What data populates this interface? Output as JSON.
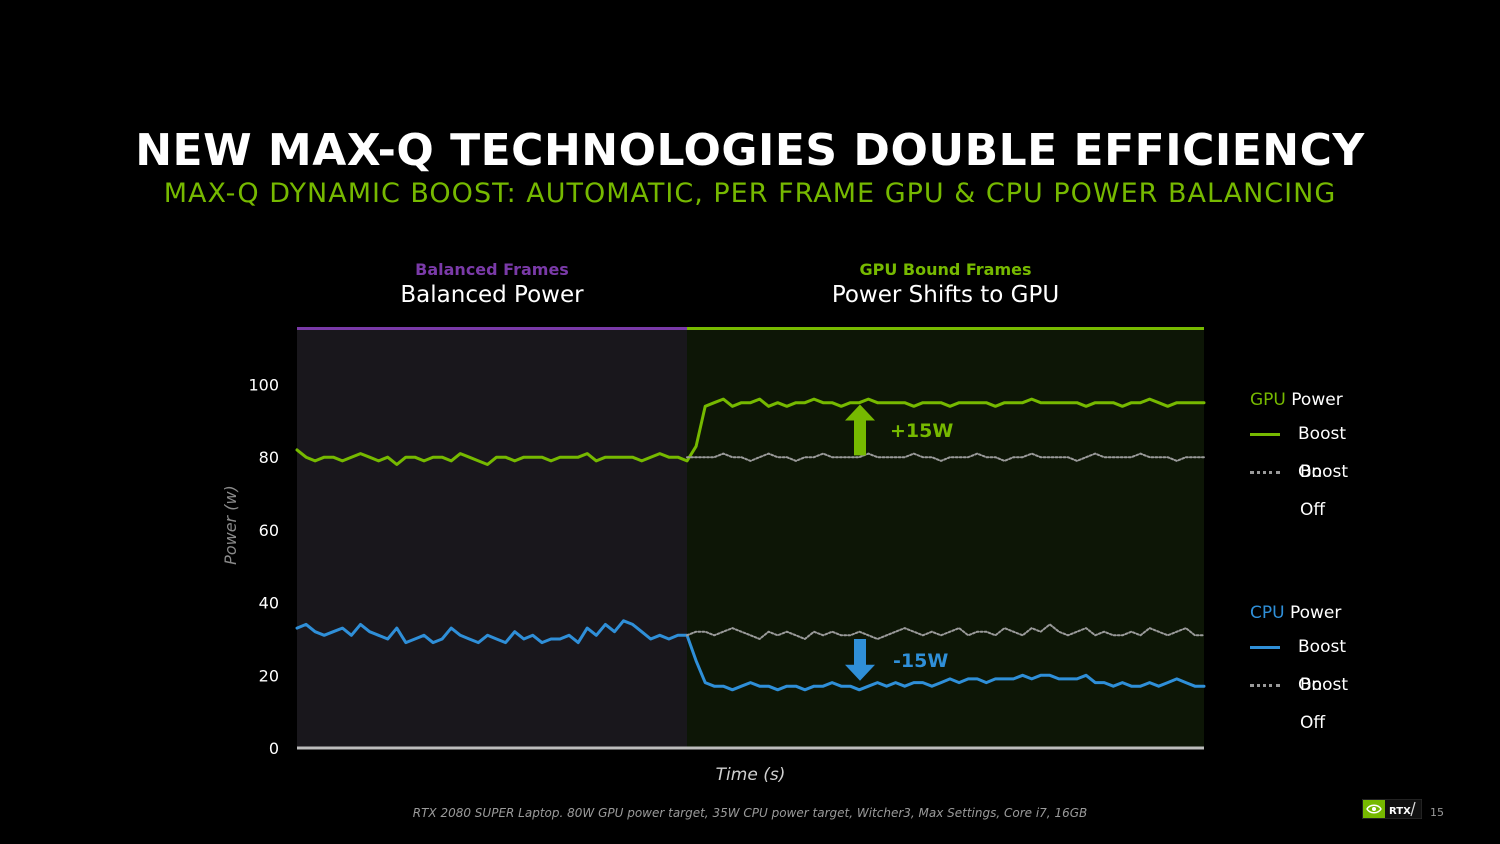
{
  "slide": {
    "title": "NEW MAX-Q TECHNOLOGIES DOUBLE EFFICIENCY",
    "subtitle": "MAX-Q DYNAMIC BOOST: AUTOMATIC, PER FRAME GPU & CPU POWER BALANCING",
    "footnote": "RTX 2080 SUPER Laptop. 80W GPU power target, 35W CPU power target, Witcher3, Max Settings, Core i7, 16GB",
    "page_number": "15",
    "brand_text": "RTX"
  },
  "sections": [
    {
      "kicker": "Balanced Frames",
      "heading": "Balanced Power",
      "color": "#7a3aa8"
    },
    {
      "kicker": "GPU Bound Frames",
      "heading": "Power Shifts to GPU",
      "color": "#76b900"
    }
  ],
  "annotations": {
    "gpu_delta": "+15W",
    "cpu_delta": "-15W"
  },
  "legend": {
    "gpu": {
      "accent": "GPU",
      "rest": " Power",
      "boost_on": "Boost On",
      "boost_off": "Boost Off"
    },
    "cpu": {
      "accent": "CPU",
      "rest": " Power",
      "boost_on": "Boost On",
      "boost_off": "Boost Off"
    }
  },
  "colors": {
    "gpu": "#76b900",
    "cpu": "#2f8fd8",
    "boost_off": "#9a9a9a",
    "balanced_bg": "#19171c",
    "gpu_bound_bg": "#0d1606",
    "balanced_bar": "#7a3aa8",
    "gpu_bound_bar": "#76b900"
  },
  "chart_data": {
    "type": "line",
    "xlabel": "Time (s)",
    "ylabel": "Power (w)",
    "ylim": [
      0,
      115
    ],
    "yticks": [
      0,
      20,
      40,
      60,
      80,
      100
    ],
    "xlim": [
      0,
      100
    ],
    "regions": [
      {
        "name": "Balanced Frames",
        "x_start": 0,
        "x_end": 43
      },
      {
        "name": "GPU Bound Frames",
        "x_start": 43,
        "x_end": 100
      }
    ],
    "series": [
      {
        "name": "GPU Power Boost On",
        "x": [
          0,
          1,
          2,
          3,
          4,
          5,
          6,
          7,
          8,
          9,
          10,
          11,
          12,
          13,
          14,
          15,
          16,
          17,
          18,
          19,
          20,
          21,
          22,
          23,
          24,
          25,
          26,
          27,
          28,
          29,
          30,
          31,
          32,
          33,
          34,
          35,
          36,
          37,
          38,
          39,
          40,
          41,
          42,
          43,
          44,
          45,
          46,
          47,
          48,
          49,
          50,
          51,
          52,
          53,
          54,
          55,
          56,
          57,
          58,
          59,
          60,
          61,
          62,
          63,
          64,
          65,
          66,
          67,
          68,
          69,
          70,
          71,
          72,
          73,
          74,
          75,
          76,
          77,
          78,
          79,
          80,
          81,
          82,
          83,
          84,
          85,
          86,
          87,
          88,
          89,
          90,
          91,
          92,
          93,
          94,
          95,
          96,
          97,
          98,
          99,
          100
        ],
        "y": [
          82,
          80,
          79,
          80,
          80,
          79,
          80,
          81,
          80,
          79,
          80,
          78,
          80,
          80,
          79,
          80,
          80,
          79,
          81,
          80,
          79,
          78,
          80,
          80,
          79,
          80,
          80,
          80,
          79,
          80,
          80,
          80,
          81,
          79,
          80,
          80,
          80,
          80,
          79,
          80,
          81,
          80,
          80,
          79,
          83,
          94,
          95,
          96,
          94,
          95,
          95,
          96,
          94,
          95,
          94,
          95,
          95,
          96,
          95,
          95,
          94,
          95,
          95,
          96,
          95,
          95,
          95,
          95,
          94,
          95,
          95,
          95,
          94,
          95,
          95,
          95,
          95,
          94,
          95,
          95,
          95,
          96,
          95,
          95,
          95,
          95,
          95,
          94,
          95,
          95,
          95,
          94,
          95,
          95,
          96,
          95,
          94,
          95,
          95,
          95,
          95
        ],
        "color": "#76b900"
      },
      {
        "name": "GPU Power Boost Off",
        "x": [
          43,
          44,
          45,
          46,
          47,
          48,
          49,
          50,
          51,
          52,
          53,
          54,
          55,
          56,
          57,
          58,
          59,
          60,
          61,
          62,
          63,
          64,
          65,
          66,
          67,
          68,
          69,
          70,
          71,
          72,
          73,
          74,
          75,
          76,
          77,
          78,
          79,
          80,
          81,
          82,
          83,
          84,
          85,
          86,
          87,
          88,
          89,
          90,
          91,
          92,
          93,
          94,
          95,
          96,
          97,
          98,
          99,
          100
        ],
        "y": [
          80,
          80,
          80,
          80,
          81,
          80,
          80,
          79,
          80,
          81,
          80,
          80,
          79,
          80,
          80,
          81,
          80,
          80,
          80,
          80,
          81,
          80,
          80,
          80,
          80,
          81,
          80,
          80,
          79,
          80,
          80,
          80,
          81,
          80,
          80,
          79,
          80,
          80,
          81,
          80,
          80,
          80,
          80,
          79,
          80,
          81,
          80,
          80,
          80,
          80,
          81,
          80,
          80,
          80,
          79,
          80,
          80,
          80
        ],
        "color": "#9a9a9a"
      },
      {
        "name": "CPU Power Boost On",
        "x": [
          0,
          1,
          2,
          3,
          4,
          5,
          6,
          7,
          8,
          9,
          10,
          11,
          12,
          13,
          14,
          15,
          16,
          17,
          18,
          19,
          20,
          21,
          22,
          23,
          24,
          25,
          26,
          27,
          28,
          29,
          30,
          31,
          32,
          33,
          34,
          35,
          36,
          37,
          38,
          39,
          40,
          41,
          42,
          43,
          44,
          45,
          46,
          47,
          48,
          49,
          50,
          51,
          52,
          53,
          54,
          55,
          56,
          57,
          58,
          59,
          60,
          61,
          62,
          63,
          64,
          65,
          66,
          67,
          68,
          69,
          70,
          71,
          72,
          73,
          74,
          75,
          76,
          77,
          78,
          79,
          80,
          81,
          82,
          83,
          84,
          85,
          86,
          87,
          88,
          89,
          90,
          91,
          92,
          93,
          94,
          95,
          96,
          97,
          98,
          99,
          100
        ],
        "y": [
          33,
          34,
          32,
          31,
          32,
          33,
          31,
          34,
          32,
          31,
          30,
          33,
          29,
          30,
          31,
          29,
          30,
          33,
          31,
          30,
          29,
          31,
          30,
          29,
          32,
          30,
          31,
          29,
          30,
          30,
          31,
          29,
          33,
          31,
          34,
          32,
          35,
          34,
          32,
          30,
          31,
          30,
          31,
          31,
          24,
          18,
          17,
          17,
          16,
          17,
          18,
          17,
          17,
          16,
          17,
          17,
          16,
          17,
          17,
          18,
          17,
          17,
          16,
          17,
          18,
          17,
          18,
          17,
          18,
          18,
          17,
          18,
          19,
          18,
          19,
          19,
          18,
          19,
          19,
          19,
          20,
          19,
          20,
          20,
          19,
          19,
          19,
          20,
          18,
          18,
          17,
          18,
          17,
          17,
          18,
          17,
          18,
          19,
          18,
          17,
          17
        ],
        "color": "#2f8fd8"
      },
      {
        "name": "CPU Power Boost Off",
        "x": [
          43,
          44,
          45,
          46,
          47,
          48,
          49,
          50,
          51,
          52,
          53,
          54,
          55,
          56,
          57,
          58,
          59,
          60,
          61,
          62,
          63,
          64,
          65,
          66,
          67,
          68,
          69,
          70,
          71,
          72,
          73,
          74,
          75,
          76,
          77,
          78,
          79,
          80,
          81,
          82,
          83,
          84,
          85,
          86,
          87,
          88,
          89,
          90,
          91,
          92,
          93,
          94,
          95,
          96,
          97,
          98,
          99,
          100
        ],
        "y": [
          31,
          32,
          32,
          31,
          32,
          33,
          32,
          31,
          30,
          32,
          31,
          32,
          31,
          30,
          32,
          31,
          32,
          31,
          31,
          32,
          31,
          30,
          31,
          32,
          33,
          32,
          31,
          32,
          31,
          32,
          33,
          31,
          32,
          32,
          31,
          33,
          32,
          31,
          33,
          32,
          34,
          32,
          31,
          32,
          33,
          31,
          32,
          31,
          31,
          32,
          31,
          33,
          32,
          31,
          32,
          33,
          31,
          31
        ],
        "color": "#9a9a9a"
      }
    ]
  }
}
